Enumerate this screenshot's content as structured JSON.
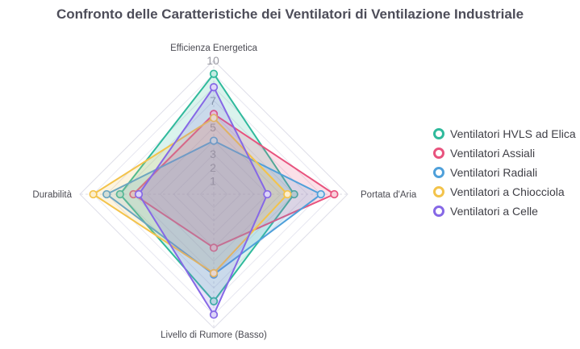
{
  "title": "Confronto delle Caratteristiche dei Ventilatori di Ventilazione Industriale",
  "chart_data": {
    "type": "radar",
    "indicators": [
      {
        "name": "Efficienza Energetica",
        "max": 10
      },
      {
        "name": "Portata d'Aria",
        "max": 10
      },
      {
        "name": "Livello di Rumore (Basso)",
        "max": 10
      },
      {
        "name": "Durabilità",
        "max": 10
      }
    ],
    "axis_range": [
      0,
      10
    ],
    "tick_values": [
      1,
      2,
      3,
      4,
      5,
      6,
      7,
      8,
      9,
      10
    ],
    "grid": true,
    "legend_position": "right",
    "series": [
      {
        "name": "Ventilatori HVLS ad Elica",
        "color": "#30BA9C",
        "values": [
          9,
          6,
          8,
          7
        ]
      },
      {
        "name": "Ventilatori Assiali",
        "color": "#E8537E",
        "values": [
          6,
          9,
          4,
          6
        ]
      },
      {
        "name": "Ventilatori Radiali",
        "color": "#4FA0DA",
        "values": [
          4,
          8,
          6,
          8
        ]
      },
      {
        "name": "Ventilatori a Chiocciola",
        "color": "#F3C34B",
        "values": [
          5.7,
          5.5,
          5.9,
          9
        ]
      },
      {
        "name": "Ventilatori a Celle",
        "color": "#8668E6",
        "values": [
          8,
          4,
          9,
          5.6
        ]
      }
    ],
    "style": {
      "grid_color": "#e7e7f0",
      "outer_grid_color": "#dedee8",
      "spoke_color": "#dcdce6",
      "tick_label_color": "#9a9aa2",
      "axis_name_color": "#4a4a52",
      "fill_opacity": 0.18
    }
  }
}
